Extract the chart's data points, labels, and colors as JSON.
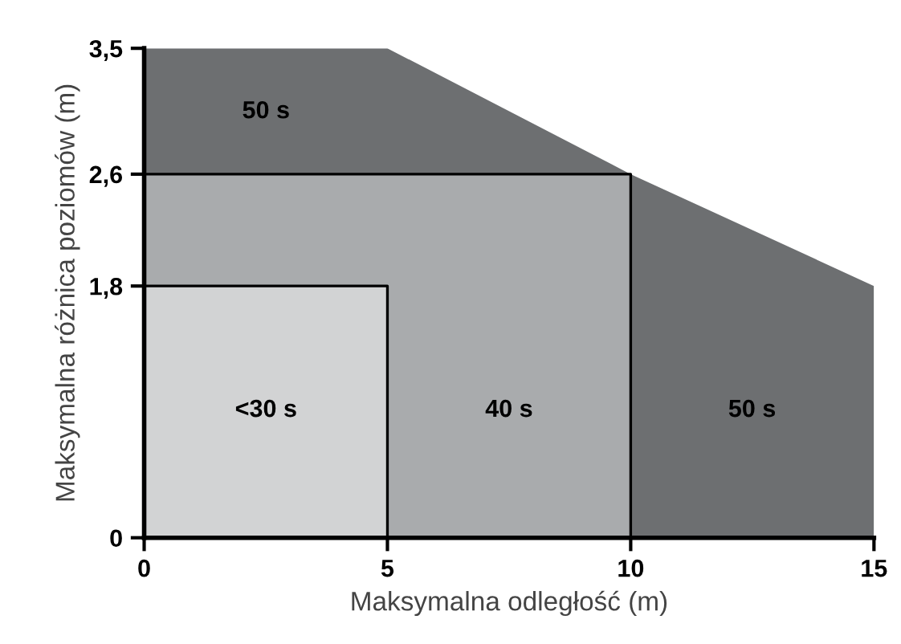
{
  "chart_data": {
    "type": "area",
    "stacked": true,
    "xlabel": "Maksymalna odległość (m)",
    "ylabel": "Maksymalna różnica poziomów (m)",
    "x": [
      0,
      5,
      5,
      10,
      10,
      15
    ],
    "series": [
      {
        "values": [
          1.8,
          1.8,
          0,
          0,
          0,
          0
        ],
        "color": "#d2d3d4",
        "line_style": "solid"
      },
      {
        "values": [
          0.8,
          0.8,
          2.6,
          2.6,
          0,
          0
        ],
        "color": "#a9abad",
        "line_style": "solid"
      },
      {
        "values": [
          0.9,
          0.9,
          0.9,
          0,
          2.6,
          1.8
        ],
        "color": "#6d6f71"
      }
    ],
    "xlim": [
      0,
      15
    ],
    "ylim": [
      0,
      3.5
    ],
    "xticks": [
      0,
      5,
      10,
      15
    ],
    "yticks": [
      0,
      {
        "value": 1.8,
        "label": "1,8"
      },
      {
        "value": 2.6,
        "label": "2,6"
      },
      {
        "value": 3.5,
        "label": "3,5"
      }
    ],
    "annotations": [
      "50 s",
      "<30 s",
      "40 s",
      "50 s"
    ],
    "grid": false
  }
}
